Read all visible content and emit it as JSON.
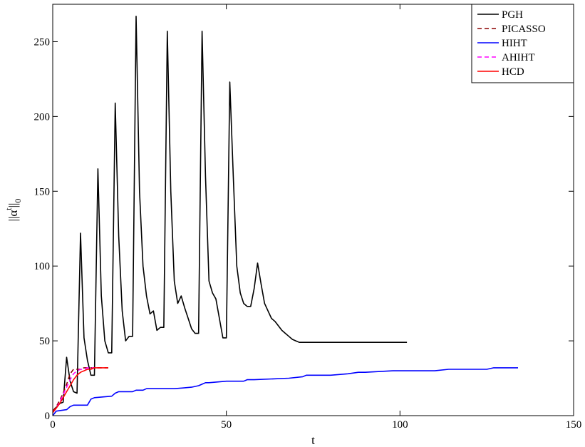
{
  "chart_data": {
    "type": "line",
    "xlabel": "t",
    "ylabel": "||α^t||_0",
    "ylabel_parts": {
      "main": "||α",
      "sup": "t",
      "close": "||",
      "sub": "0"
    },
    "xlim": [
      0,
      150
    ],
    "ylim": [
      0,
      275
    ],
    "xticks": [
      0,
      50,
      100,
      150
    ],
    "yticks": [
      0,
      50,
      100,
      150,
      200,
      250
    ],
    "grid": false,
    "legend_position": "top-right",
    "series": [
      {
        "name": "PGH",
        "color": "#000000",
        "dash": "solid",
        "x": [
          0,
          2,
          3,
          4,
          5,
          6,
          7,
          8,
          9,
          10,
          11,
          12,
          13,
          14,
          15,
          16,
          17,
          18,
          19,
          20,
          21,
          22,
          23,
          24,
          25,
          26,
          27,
          28,
          29,
          30,
          31,
          32,
          33,
          34,
          35,
          36,
          37,
          38,
          39,
          40,
          41,
          42,
          43,
          44,
          45,
          46,
          47,
          48,
          49,
          50,
          51,
          52,
          53,
          54,
          55,
          56,
          57,
          58,
          59,
          60,
          61,
          62,
          63,
          64,
          65,
          66,
          67,
          68,
          69,
          70,
          71,
          75,
          80,
          90,
          102
        ],
        "y": [
          3,
          8,
          9,
          39,
          23,
          16,
          15,
          122,
          52,
          37,
          27,
          27,
          165,
          80,
          50,
          42,
          42,
          209,
          120,
          70,
          50,
          53,
          53,
          267,
          150,
          100,
          80,
          68,
          70,
          57,
          59,
          59,
          257,
          150,
          90,
          75,
          80,
          72,
          65,
          58,
          55,
          55,
          257,
          160,
          90,
          82,
          78,
          65,
          52,
          52,
          223,
          160,
          100,
          82,
          75,
          73,
          73,
          85,
          102,
          88,
          75,
          70,
          65,
          63,
          60,
          57,
          55,
          53,
          51,
          50,
          49,
          49,
          49,
          49,
          49
        ]
      },
      {
        "name": "PICASSO",
        "color": "#8b0000",
        "dash": "dashed",
        "x": [
          0,
          1,
          2,
          3,
          4,
          5,
          6,
          7,
          8,
          9,
          10,
          11,
          12,
          13,
          14,
          15,
          16
        ],
        "y": [
          3,
          6,
          10,
          15,
          21,
          28,
          31,
          31,
          31,
          32,
          32,
          32,
          32,
          32,
          32,
          32,
          32
        ]
      },
      {
        "name": "HIHT",
        "color": "#0000ff",
        "dash": "solid",
        "x": [
          0,
          1,
          4,
          5,
          6,
          10,
          11,
          12,
          17,
          18,
          19,
          23,
          24,
          26,
          27,
          35,
          40,
          42,
          43,
          44,
          45,
          50,
          55,
          56,
          58,
          68,
          72,
          73,
          80,
          85,
          88,
          90,
          98,
          100,
          110,
          114,
          115,
          125,
          127,
          130,
          134
        ],
        "y": [
          0,
          3,
          4,
          6,
          7,
          7,
          11,
          12,
          13,
          15,
          16,
          16,
          17,
          17,
          18,
          18,
          19,
          20,
          21,
          22,
          22,
          23,
          23,
          24,
          24,
          25,
          26,
          27,
          27,
          28,
          29,
          29,
          30,
          30,
          30,
          31,
          31,
          31,
          32,
          32,
          32
        ]
      },
      {
        "name": "AHIHT",
        "color": "#ff00ff",
        "dash": "dashed",
        "x": [
          0,
          1,
          2,
          3,
          4,
          5,
          6,
          7,
          8,
          9,
          10,
          11,
          12
        ],
        "y": [
          2,
          5,
          9,
          14,
          19,
          24,
          28,
          30,
          31,
          31,
          32,
          32,
          32
        ]
      },
      {
        "name": "HCD",
        "color": "#ff0000",
        "dash": "solid",
        "x": [
          0,
          1,
          2,
          3,
          4,
          5,
          6,
          7,
          8,
          9,
          10,
          11,
          12,
          13,
          14,
          15,
          16
        ],
        "y": [
          2,
          5,
          8,
          12,
          16,
          20,
          24,
          27,
          29,
          30,
          31,
          31,
          32,
          32,
          32,
          32,
          32
        ]
      }
    ]
  }
}
